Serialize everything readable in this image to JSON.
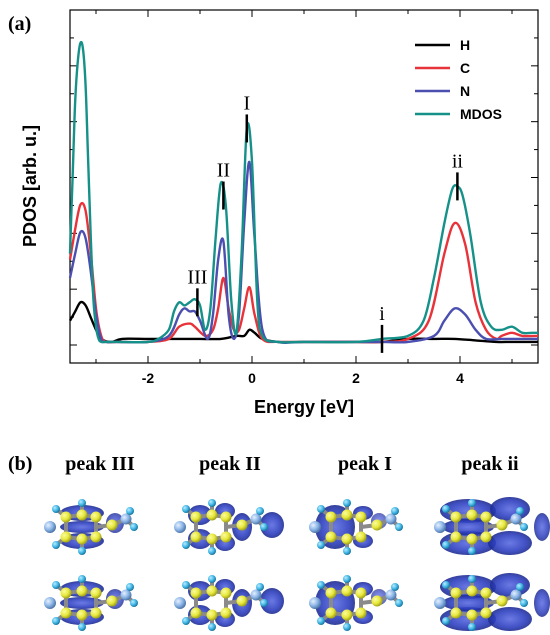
{
  "panel_a_label": "(a)",
  "panel_b_label": "(b)",
  "colors": {
    "H": "#000000",
    "C": "#e8333a",
    "N": "#4a4fb0",
    "MDOS": "#16918a",
    "orbital_blue": "#2d3fbf",
    "atom_yellow": "#e7e83c",
    "atom_cyan": "#41b6e6",
    "atom_lightblue": "#8ab4e6"
  },
  "chart_data": {
    "type": "line",
    "xlabel": "Energy [eV]",
    "ylabel": "PDOS [arb. u.]",
    "xlim": [
      -3.5,
      5.5
    ],
    "ylim": [
      0,
      1
    ],
    "x_ticks": [
      -2,
      0,
      2,
      4
    ],
    "x_tick_labels": [
      "-2",
      "0",
      "2",
      "4"
    ],
    "legend_position": "top-right",
    "series": [
      {
        "name": "H",
        "x": [
          -3.5,
          -3.4,
          -3.3,
          -3.2,
          -3.1,
          -3.0,
          -2.9,
          -2.7,
          -2.5,
          -2.0,
          -1.5,
          -1.0,
          -0.6,
          -0.3,
          -0.15,
          -0.05,
          0.05,
          0.2,
          0.5,
          1.0,
          2.0,
          2.5,
          3.0,
          3.5,
          3.9,
          4.3,
          4.7,
          5.0,
          5.5
        ],
        "y": [
          0.08,
          0.11,
          0.14,
          0.13,
          0.09,
          0.05,
          0.02,
          0.01,
          0.02,
          0.02,
          0.02,
          0.02,
          0.02,
          0.03,
          0.03,
          0.05,
          0.04,
          0.02,
          0.01,
          0.01,
          0.01,
          0.01,
          0.02,
          0.02,
          0.02,
          0.015,
          0.01,
          0.01,
          0.01
        ]
      },
      {
        "name": "C",
        "x": [
          -3.5,
          -3.4,
          -3.3,
          -3.2,
          -3.1,
          -3.0,
          -2.9,
          -2.8,
          -2.6,
          -2.0,
          -1.6,
          -1.4,
          -1.2,
          -1.1,
          -0.9,
          -0.75,
          -0.65,
          -0.55,
          -0.45,
          -0.35,
          -0.25,
          -0.15,
          -0.05,
          0.05,
          0.2,
          0.5,
          1.0,
          2.0,
          2.5,
          3.0,
          3.4,
          3.7,
          3.9,
          4.1,
          4.3,
          4.5,
          4.7,
          4.8,
          5.0,
          5.2,
          5.5
        ],
        "y": [
          0.28,
          0.38,
          0.46,
          0.44,
          0.3,
          0.12,
          0.03,
          0.01,
          0.01,
          0.01,
          0.02,
          0.06,
          0.07,
          0.06,
          0.03,
          0.05,
          0.12,
          0.22,
          0.12,
          0.05,
          0.05,
          0.12,
          0.19,
          0.1,
          0.02,
          0.01,
          0.01,
          0.01,
          0.01,
          0.02,
          0.08,
          0.3,
          0.4,
          0.33,
          0.14,
          0.05,
          0.02,
          0.03,
          0.04,
          0.03,
          0.03
        ]
      },
      {
        "name": "N",
        "x": [
          -3.5,
          -3.4,
          -3.3,
          -3.2,
          -3.1,
          -3.0,
          -2.9,
          -2.8,
          -2.6,
          -2.0,
          -1.6,
          -1.4,
          -1.3,
          -1.2,
          -1.1,
          -1.0,
          -0.85,
          -0.75,
          -0.65,
          -0.55,
          -0.45,
          -0.35,
          -0.25,
          -0.15,
          -0.05,
          0.05,
          0.2,
          0.5,
          1.0,
          2.0,
          2.5,
          3.0,
          3.5,
          3.7,
          3.9,
          4.1,
          4.3,
          4.5,
          4.8,
          5.0,
          5.2,
          5.5
        ],
        "y": [
          0.22,
          0.3,
          0.37,
          0.35,
          0.24,
          0.1,
          0.02,
          0.01,
          0.01,
          0.01,
          0.03,
          0.1,
          0.12,
          0.11,
          0.11,
          0.08,
          0.02,
          0.1,
          0.28,
          0.34,
          0.1,
          0.02,
          0.1,
          0.4,
          0.6,
          0.35,
          0.05,
          0.01,
          0.01,
          0.01,
          0.01,
          0.01,
          0.03,
          0.08,
          0.12,
          0.1,
          0.05,
          0.02,
          0.02,
          0.02,
          0.02,
          0.02
        ]
      },
      {
        "name": "MDOS",
        "x": [
          -3.5,
          -3.45,
          -3.4,
          -3.35,
          -3.3,
          -3.25,
          -3.2,
          -3.15,
          -3.1,
          -3.05,
          -3.0,
          -2.95,
          -2.9,
          -2.8,
          -2.6,
          -2.0,
          -1.8,
          -1.6,
          -1.5,
          -1.4,
          -1.3,
          -1.2,
          -1.1,
          -1.0,
          -0.9,
          -0.8,
          -0.7,
          -0.6,
          -0.5,
          -0.4,
          -0.3,
          -0.2,
          -0.1,
          0.0,
          0.1,
          0.2,
          0.5,
          1.0,
          2.0,
          2.5,
          3.0,
          3.3,
          3.5,
          3.7,
          3.85,
          3.95,
          4.05,
          4.2,
          4.4,
          4.6,
          4.8,
          5.0,
          5.2,
          5.4,
          5.5
        ],
        "y": [
          0.3,
          0.55,
          0.8,
          0.93,
          0.99,
          0.97,
          0.85,
          0.6,
          0.35,
          0.15,
          0.06,
          0.02,
          0.01,
          0.01,
          0.01,
          0.01,
          0.02,
          0.05,
          0.11,
          0.14,
          0.13,
          0.14,
          0.15,
          0.13,
          0.05,
          0.12,
          0.35,
          0.53,
          0.45,
          0.15,
          0.04,
          0.3,
          0.71,
          0.6,
          0.15,
          0.03,
          0.01,
          0.01,
          0.01,
          0.02,
          0.03,
          0.08,
          0.22,
          0.4,
          0.51,
          0.52,
          0.49,
          0.36,
          0.14,
          0.06,
          0.05,
          0.06,
          0.04,
          0.04,
          0.04
        ]
      }
    ],
    "peak_markers": [
      {
        "label": "I",
        "x": -0.1
      },
      {
        "label": "II",
        "x": -0.55
      },
      {
        "label": "III",
        "x": -1.05
      },
      {
        "label": "i",
        "x": 2.5
      },
      {
        "label": "ii",
        "x": 3.95
      }
    ]
  },
  "panel_b": {
    "columns": [
      "peak III",
      "peak II",
      "peak I",
      "peak ii"
    ],
    "rows": 2
  }
}
